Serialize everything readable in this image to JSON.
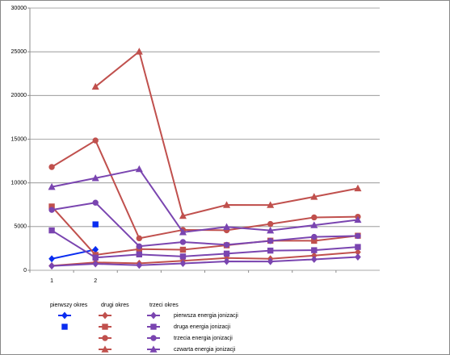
{
  "chart_data": {
    "type": "line",
    "categories": [
      "1",
      "2",
      null,
      null,
      null,
      null,
      null,
      null
    ],
    "ylim": [
      0,
      30000
    ],
    "yticks": [
      0,
      5000,
      10000,
      15000,
      20000,
      25000,
      30000
    ],
    "grid": true,
    "energy_labels": [
      "pierwsza energia jonizacji",
      "druga energia jonizacji",
      "trzecia energia jonizacji",
      "czwarta energia jonizacji"
    ],
    "groups": [
      {
        "name": "pierwszy okres",
        "color": "#0a2df0",
        "series": [
          {
            "marker": "diamond",
            "values": [
              1312,
              2372,
              null,
              null,
              null,
              null,
              null,
              null
            ]
          },
          {
            "marker": "square",
            "values": [
              null,
              5251,
              null,
              null,
              null,
              null,
              null,
              null
            ]
          }
        ]
      },
      {
        "name": "drugi okres",
        "color": "#c0504d",
        "series": [
          {
            "marker": "diamond",
            "values": [
              520,
              900,
              801,
              1086,
              1402,
              1314,
              1681,
              2081
            ]
          },
          {
            "marker": "square",
            "values": [
              7298,
              1757,
              2427,
              2353,
              2856,
              3388,
              3374,
              3952
            ]
          },
          {
            "marker": "circle",
            "values": [
              11815,
              14849,
              3660,
              4621,
              4578,
              5300,
              6050,
              6122
            ]
          },
          {
            "marker": "triangle",
            "values": [
              null,
              21007,
              25026,
              6223,
              7475,
              7469,
              8408,
              9371
            ]
          }
        ]
      },
      {
        "name": "trzeci okres",
        "color": "#7a45b0",
        "series": [
          {
            "marker": "diamond",
            "values": [
              496,
              738,
              578,
              787,
              1012,
              1000,
              1251,
              1521
            ]
          },
          {
            "marker": "square",
            "values": [
              4562,
              1451,
              1817,
              1577,
              1907,
              2252,
              2298,
              2666
            ]
          },
          {
            "marker": "circle",
            "values": [
              6910,
              7733,
              2745,
              3232,
              2914,
              3357,
              3822,
              3931
            ]
          },
          {
            "marker": "triangle",
            "values": [
              9543,
              10543,
              11577,
              4356,
              4957,
              4556,
              5159,
              5771
            ]
          }
        ]
      }
    ]
  }
}
